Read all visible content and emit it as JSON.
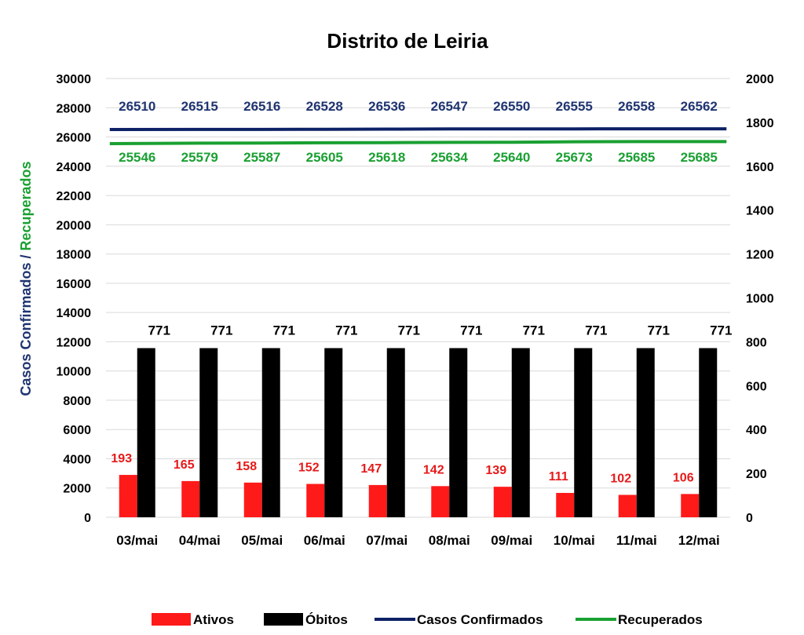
{
  "chart_data": {
    "type": "bar",
    "title": "Distrito de Leiria",
    "categories": [
      "03/mai",
      "04/mai",
      "05/mai",
      "06/mai",
      "07/mai",
      "08/mai",
      "09/mai",
      "10/mai",
      "11/mai",
      "12/mai"
    ],
    "ylabel_part1": "Casos Confirmados",
    "ylabel_sep": " / ",
    "ylabel_part2": "Recuperados",
    "ylim_left": [
      0,
      30000
    ],
    "yticks_left": [
      0,
      2000,
      4000,
      6000,
      8000,
      10000,
      12000,
      14000,
      16000,
      18000,
      20000,
      22000,
      24000,
      26000,
      28000,
      30000
    ],
    "ylim_right": [
      0,
      2000
    ],
    "yticks_right": [
      0,
      200,
      400,
      600,
      800,
      1000,
      1200,
      1400,
      1600,
      1800,
      2000
    ],
    "grid": true,
    "legend_position": "bottom",
    "series": [
      {
        "name": "Ativos",
        "kind": "bar",
        "axis": "right",
        "color": "#ff1a1a",
        "label_color": "#e61919",
        "values": [
          193,
          165,
          158,
          152,
          147,
          142,
          139,
          111,
          102,
          106
        ]
      },
      {
        "name": "Óbitos",
        "kind": "bar",
        "axis": "right",
        "color": "#000000",
        "label_color": "#000000",
        "values": [
          771,
          771,
          771,
          771,
          771,
          771,
          771,
          771,
          771,
          771
        ]
      },
      {
        "name": "Casos Confirmados",
        "kind": "line",
        "axis": "left",
        "color": "#0d2166",
        "label_color": "#1f3470",
        "values": [
          26510,
          26515,
          26516,
          26528,
          26536,
          26547,
          26550,
          26555,
          26558,
          26562
        ]
      },
      {
        "name": "Recuperados",
        "kind": "line",
        "axis": "left",
        "color": "#1aa032",
        "label_color": "#1aa032",
        "values": [
          25546,
          25579,
          25587,
          25605,
          25618,
          25634,
          25640,
          25673,
          25685,
          25685
        ]
      }
    ]
  }
}
